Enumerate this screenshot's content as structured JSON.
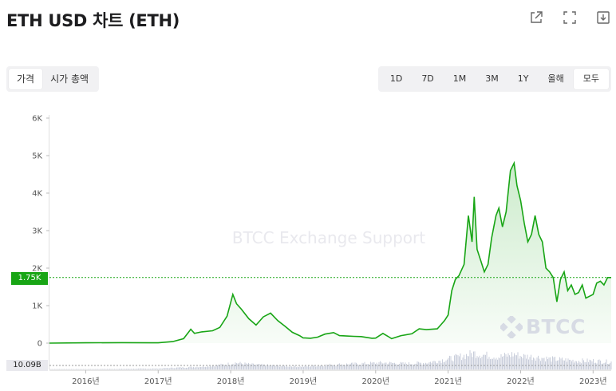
{
  "header": {
    "title": "ETH USD 차트 (ETH)"
  },
  "icons": {
    "share": "share-icon",
    "fullscreen": "fullscreen-icon",
    "download": "download-icon"
  },
  "view_tabs": {
    "price": "가격",
    "market_cap": "시가 총액",
    "active": "price"
  },
  "range_tabs": [
    "1D",
    "7D",
    "1M",
    "3M",
    "1Y",
    "올해",
    "모두"
  ],
  "range_active": "모두",
  "current_price_label": "1.75K",
  "current_volume_label": "10.09B",
  "watermark_text": "BTCC Exchange Support",
  "logo_text": "BTCC",
  "colors": {
    "line": "#18a515",
    "fill": "#e8f6e8",
    "volume": "#c9cedb",
    "badge": "#18a515"
  },
  "chart_data": {
    "type": "area",
    "title": "ETH USD 차트 (ETH)",
    "xlabel": "",
    "ylabel": "",
    "y_tick_labels": [
      "0",
      "1K",
      "2K",
      "3K",
      "4K",
      "5K",
      "6K"
    ],
    "y_ticks": [
      0,
      1000,
      2000,
      3000,
      4000,
      5000,
      6000
    ],
    "ylim": [
      0,
      6000
    ],
    "x_tick_labels": [
      "2016년",
      "2017년",
      "2018년",
      "2019년",
      "2020년",
      "2021년",
      "2022년",
      "2023년"
    ],
    "x_ticks": [
      2016,
      2017,
      2018,
      2019,
      2020,
      2021,
      2022,
      2023
    ],
    "xlim": [
      2015.5,
      2023.25
    ],
    "grid": false,
    "current_price": 1750,
    "series": [
      {
        "x": [
          2015.5,
          2016.0,
          2016.5,
          2016.9,
          2017.0,
          2017.2,
          2017.35,
          2017.45,
          2017.5,
          2017.6,
          2017.75,
          2017.85,
          2017.95,
          2018.03,
          2018.08,
          2018.15,
          2018.25,
          2018.35,
          2018.45,
          2018.55,
          2018.65,
          2018.75,
          2018.85,
          2018.95,
          2019.0,
          2019.1,
          2019.2,
          2019.3,
          2019.42,
          2019.5,
          2019.6,
          2019.7,
          2019.8,
          2019.95,
          2020.0,
          2020.1,
          2020.17,
          2020.22,
          2020.35,
          2020.5,
          2020.6,
          2020.7,
          2020.85,
          2020.95,
          2021.0,
          2021.05,
          2021.1,
          2021.15,
          2021.22,
          2021.28,
          2021.33,
          2021.36,
          2021.4,
          2021.45,
          2021.5,
          2021.55,
          2021.6,
          2021.66,
          2021.7,
          2021.75,
          2021.8,
          2021.86,
          2021.91,
          2021.95,
          2022.0,
          2022.05,
          2022.1,
          2022.15,
          2022.2,
          2022.25,
          2022.3,
          2022.35,
          2022.4,
          2022.45,
          2022.5,
          2022.55,
          2022.6,
          2022.65,
          2022.7,
          2022.75,
          2022.8,
          2022.85,
          2022.9,
          2022.95,
          2023.0,
          2023.05,
          2023.1,
          2023.15,
          2023.2,
          2023.25
        ],
        "y": [
          1,
          8,
          12,
          9,
          8,
          40,
          120,
          370,
          260,
          300,
          330,
          420,
          720,
          1300,
          1050,
          900,
          650,
          480,
          700,
          800,
          600,
          450,
          290,
          200,
          140,
          130,
          160,
          240,
          280,
          200,
          190,
          180,
          175,
          130,
          135,
          260,
          180,
          120,
          200,
          250,
          380,
          360,
          380,
          600,
          750,
          1400,
          1700,
          1800,
          2100,
          3400,
          2700,
          3900,
          2500,
          2200,
          1900,
          2100,
          2800,
          3400,
          3600,
          3100,
          3500,
          4600,
          4800,
          4200,
          3800,
          3200,
          2700,
          2900,
          3400,
          2900,
          2700,
          2000,
          1900,
          1750,
          1100,
          1700,
          1900,
          1400,
          1550,
          1300,
          1350,
          1550,
          1200,
          1250,
          1300,
          1600,
          1650,
          1550,
          1750,
          1750
        ]
      }
    ],
    "volume": {
      "label": "10.09B",
      "x": [
        2016.0,
        2016.5,
        2017.0,
        2017.3,
        2017.6,
        2017.9,
        2018.05,
        2018.3,
        2018.6,
        2019.0,
        2019.4,
        2019.8,
        2020.1,
        2020.4,
        2020.7,
        2021.0,
        2021.2,
        2021.35,
        2021.5,
        2021.7,
        2021.9,
        2022.0,
        2022.2,
        2022.4,
        2022.6,
        2022.8,
        2023.0,
        2023.2
      ],
      "y": [
        0.02,
        0.03,
        0.05,
        0.1,
        0.15,
        0.25,
        0.35,
        0.25,
        0.2,
        0.15,
        0.25,
        0.3,
        0.35,
        0.3,
        0.35,
        0.55,
        0.7,
        0.85,
        0.75,
        0.65,
        0.8,
        0.7,
        0.65,
        0.55,
        0.5,
        0.45,
        0.45,
        0.4
      ]
    }
  }
}
